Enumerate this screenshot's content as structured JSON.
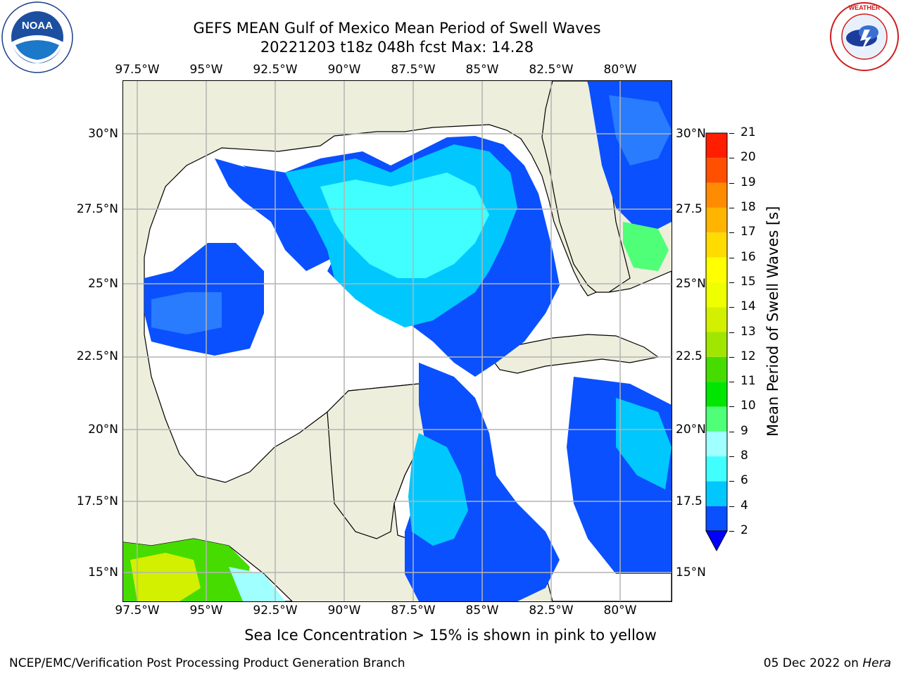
{
  "title": {
    "line1": "GEFS MEAN Gulf of Mexico Mean Period of Swell Waves",
    "line2": "20221203 t18z 048h fcst   Max: 14.28"
  },
  "map": {
    "lon_ticks": [
      "97.5°W",
      "95°W",
      "92.5°W",
      "90°W",
      "87.5°W",
      "85°W",
      "82.5°W",
      "80°W"
    ],
    "lat_ticks_left": [
      "30°N",
      "27.5°N",
      "25°N",
      "22.5°N",
      "20°N",
      "17.5°N",
      "15°N"
    ],
    "lat_ticks_right": [
      "30°N",
      "27.5",
      "25°N",
      "22.5",
      "20°N",
      "17.5",
      "15°N"
    ],
    "colors": {
      "land": "#eeeedc",
      "ocean_calm": "#ffffff",
      "grid": "#b4b4b4",
      "coast": "#000000"
    }
  },
  "colorbar": {
    "label": "Mean Period of Swell Waves [s]",
    "ticks": [
      "2",
      "4",
      "6",
      "8",
      "9",
      "10",
      "11",
      "12",
      "13",
      "14",
      "15",
      "16",
      "17",
      "18",
      "19",
      "20",
      "21"
    ],
    "colors": [
      "#0a50ff",
      "#00c8ff",
      "#41ffff",
      "#a0ffff",
      "#50ff78",
      "#00e600",
      "#46dc00",
      "#a0e600",
      "#d2f000",
      "#f0ff00",
      "#ffff00",
      "#ffdc00",
      "#ffb400",
      "#ff8c00",
      "#ff5000",
      "#ff1e00"
    ],
    "extend_color": "#0000ff"
  },
  "note": "Sea Ice Concentration > 15% is shown in pink to yellow",
  "footer": {
    "left": "NCEP/EMC/Verification Post Processing Product Generation Branch",
    "date": "05 Dec 2022 on ",
    "machine": "Hera"
  },
  "logos": {
    "noaa_text": "NOAA",
    "noaa_ring": "NATIONAL OCEANIC AND ATMOSPHERIC ADMINISTRATION · U.S. DEPARTMENT OF COMMERCE",
    "nws_ring": "NATIONAL WEATHER SERVICE"
  }
}
